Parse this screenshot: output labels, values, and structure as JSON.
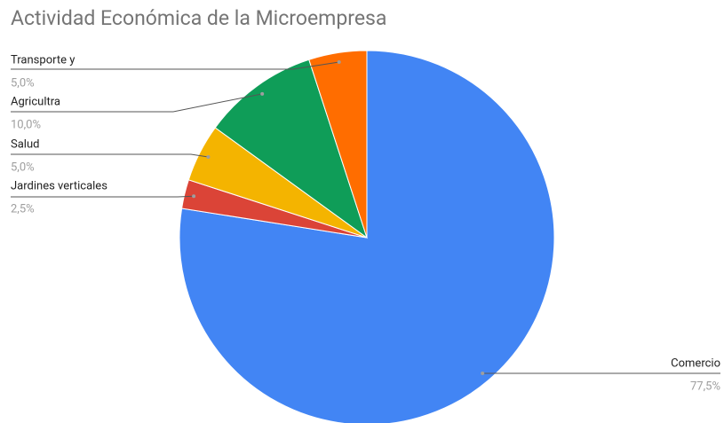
{
  "chart_data": {
    "type": "pie",
    "title": "Actividad Económica de la Microempresa",
    "categories": [
      "Comercio",
      "Jardines verticales",
      "Salud",
      "Agricultra",
      "Transporte y"
    ],
    "values": [
      77.5,
      2.5,
      5.0,
      10.0,
      5.0
    ],
    "value_labels": [
      "77,5%",
      "2,5%",
      "5,0%",
      "10,0%",
      "5,0%"
    ],
    "colors": [
      "#4285f4",
      "#db4437",
      "#f4b400",
      "#0f9d58",
      "#ff6d00"
    ]
  }
}
